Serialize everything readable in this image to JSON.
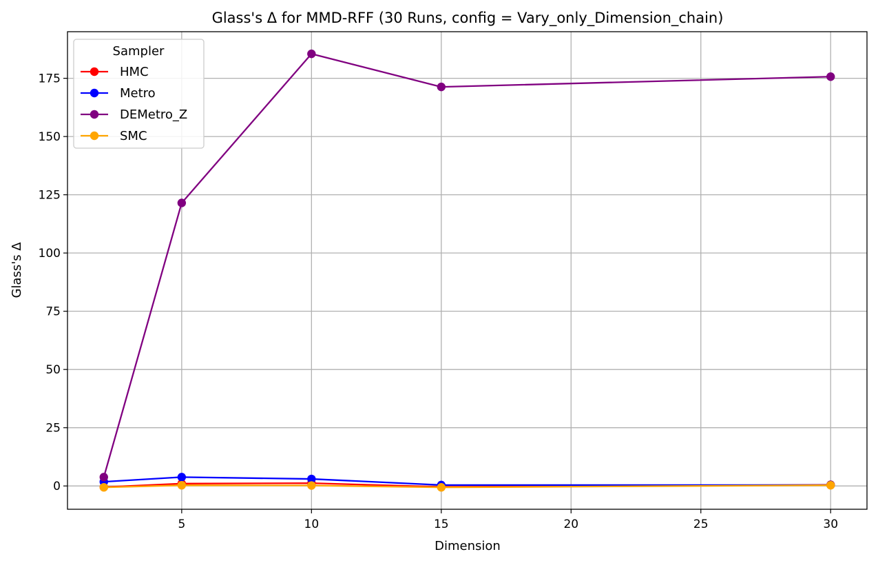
{
  "chart_data": {
    "type": "line",
    "title": "Glass's Δ for MMD-RFF (30 Runs, config = Vary_only_Dimension_chain)",
    "xlabel": "Dimension",
    "ylabel": "Glass's Δ",
    "xlim": [
      0.6,
      31.4
    ],
    "ylim": [
      -10,
      195
    ],
    "xticks": [
      5,
      10,
      15,
      20,
      25,
      30
    ],
    "yticks": [
      0,
      25,
      50,
      75,
      100,
      125,
      150,
      175
    ],
    "grid": true,
    "legend": {
      "title": "Sampler",
      "placement": "top-left"
    },
    "x": [
      2,
      5,
      10,
      15,
      30
    ],
    "series": [
      {
        "name": "HMC",
        "color": "#ff0000",
        "values": [
          -0.5,
          1.0,
          1.2,
          -0.4,
          0.5
        ]
      },
      {
        "name": "Metro",
        "color": "#0000ff",
        "values": [
          1.8,
          3.8,
          3.0,
          0.4,
          0.4
        ]
      },
      {
        "name": "DEMetro_Z",
        "color": "#800080",
        "values": [
          3.8,
          121.5,
          185.5,
          171.3,
          175.7
        ]
      },
      {
        "name": "SMC",
        "color": "#ffa500",
        "values": [
          -0.6,
          0.3,
          0.2,
          -0.6,
          0.3
        ]
      }
    ]
  }
}
